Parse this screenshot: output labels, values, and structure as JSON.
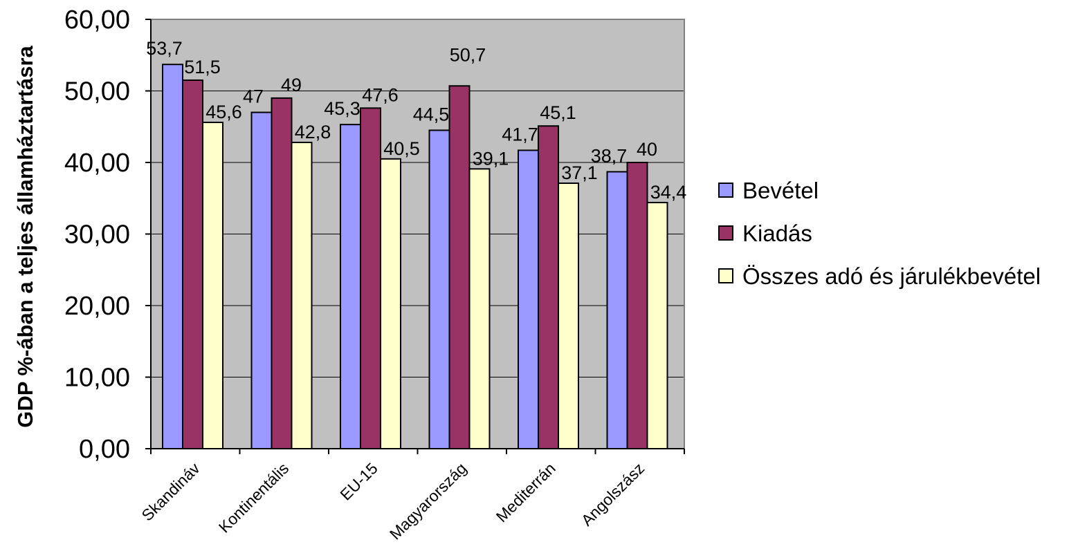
{
  "chart_data": {
    "type": "bar",
    "categories": [
      "Skandináv",
      "Kontinentális",
      "EU-15",
      "Magyarország",
      "Mediterrán",
      "Angolszász"
    ],
    "series": [
      {
        "name": "Bevétel",
        "color": "#9999ff",
        "values": [
          53.7,
          47,
          45.3,
          44.5,
          41.7,
          38.7
        ],
        "labels": [
          "53,7",
          "47",
          "45,3",
          "44,5",
          "41,7",
          "38,7"
        ]
      },
      {
        "name": "Kiadás",
        "color": "#993366",
        "values": [
          51.5,
          49,
          47.6,
          50.7,
          45.1,
          40
        ],
        "labels": [
          "51,5",
          "49",
          "47,6",
          "50,7",
          "45,1",
          "40"
        ]
      },
      {
        "name": "Összes adó és járulékbevétel",
        "color": "#ffffcc",
        "values": [
          45.6,
          42.8,
          40.5,
          39.1,
          37.1,
          34.4
        ],
        "labels": [
          "45,6",
          "42,8",
          "40,5",
          "39,1",
          "37,1",
          "34,4"
        ]
      }
    ],
    "title": "",
    "xlabel": "",
    "ylabel": "GDP %-ában a teljes államháztartásra",
    "ylim": [
      0,
      60
    ],
    "yticks": [
      0,
      10,
      20,
      30,
      40,
      50,
      60
    ],
    "ytick_labels": [
      "0,00",
      "10,00",
      "20,00",
      "30,00",
      "40,00",
      "50,00",
      "60,00"
    ],
    "grid": true,
    "plot_background": "#c0c0c0",
    "legend_position": "right"
  }
}
